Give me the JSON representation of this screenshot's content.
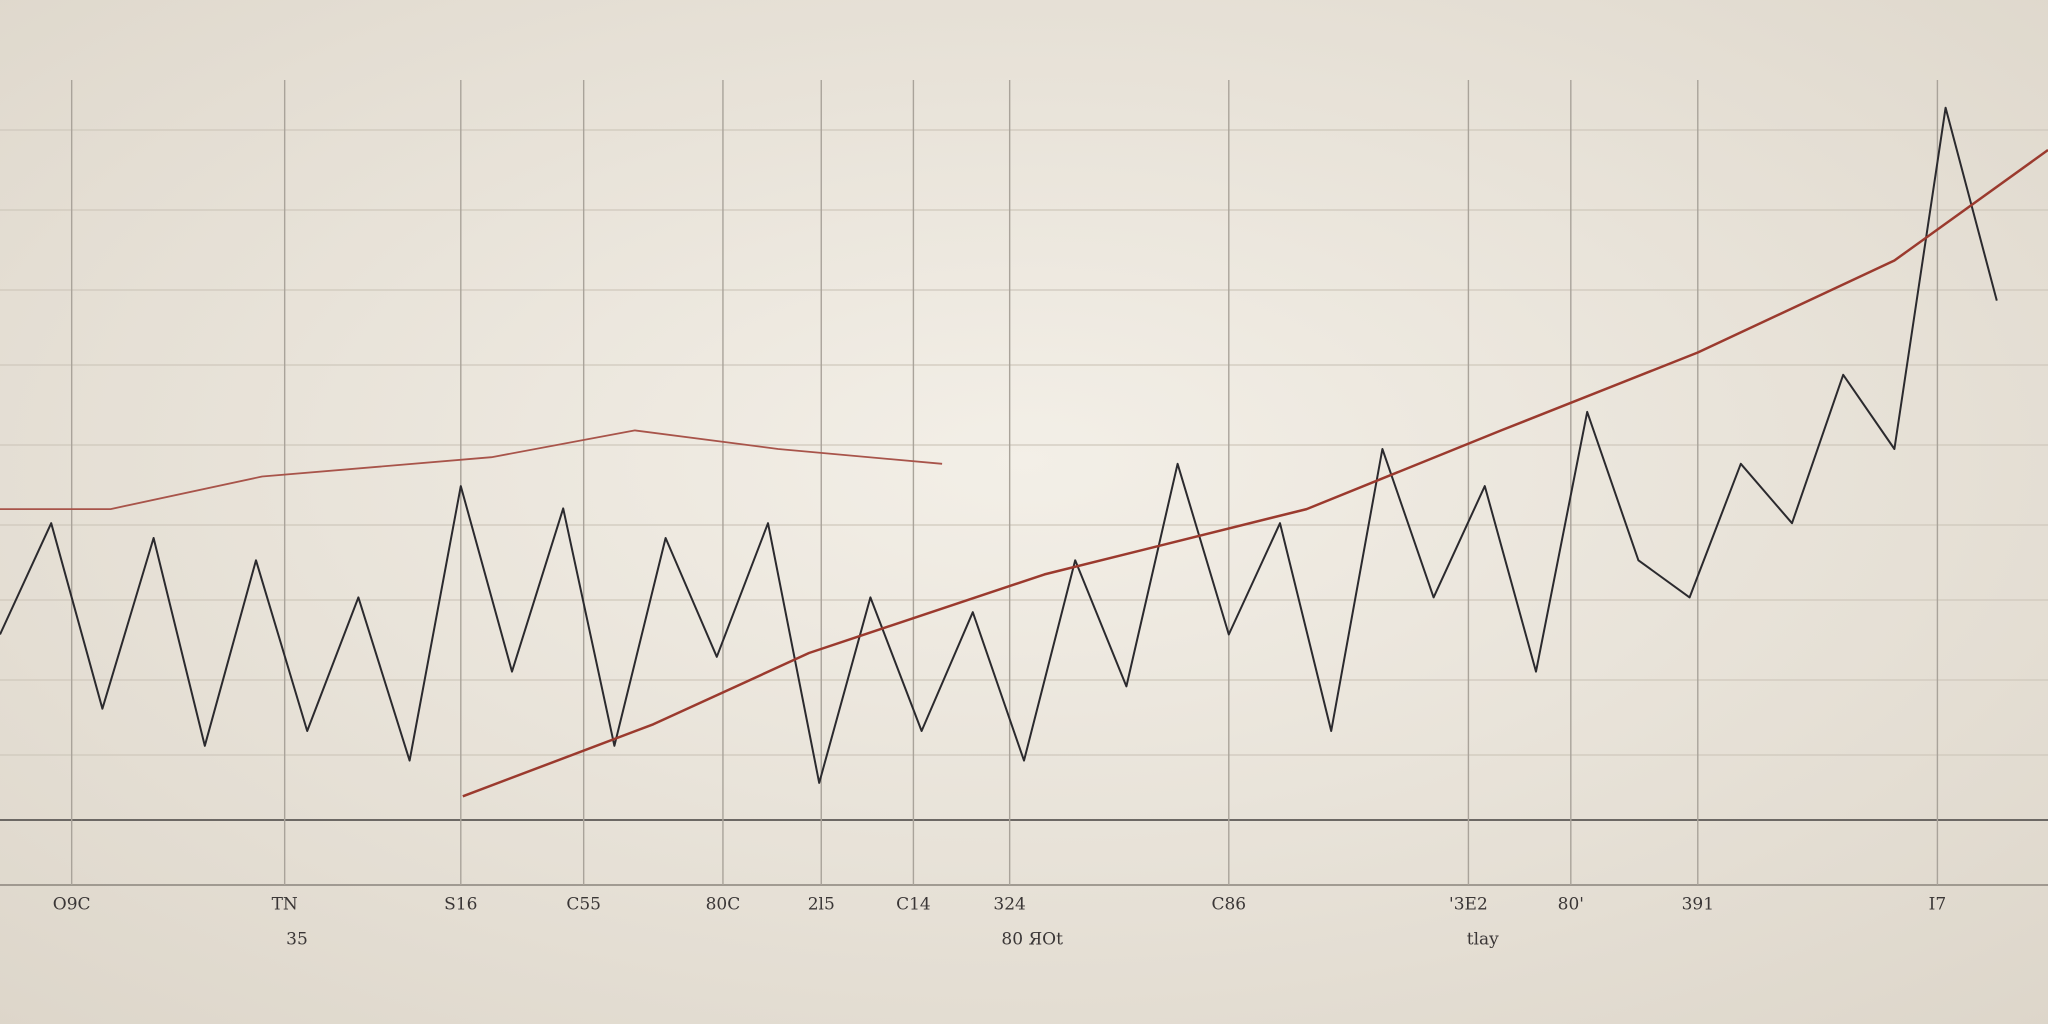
{
  "chart_data": {
    "type": "line",
    "xlim": [
      0,
      100
    ],
    "ylim": [
      0,
      100
    ],
    "grid": true,
    "xticks": [
      {
        "value": 3.5,
        "label": "O9C"
      },
      {
        "value": 13.9,
        "label": "TN"
      },
      {
        "value": 22.5,
        "label": "S16"
      },
      {
        "value": 28.5,
        "label": "C55"
      },
      {
        "value": 35.3,
        "label": "80C"
      },
      {
        "value": 40.1,
        "label": "2l5"
      },
      {
        "value": 44.6,
        "label": "C14"
      },
      {
        "value": 49.3,
        "label": "324"
      },
      {
        "value": 60.0,
        "label": "C86"
      },
      {
        "value": 71.7,
        "label": "'3E2"
      },
      {
        "value": 76.7,
        "label": "80'"
      },
      {
        "value": 82.9,
        "label": "391"
      },
      {
        "value": 94.6,
        "label": "I7"
      }
    ],
    "xticks_minor": [
      {
        "value": 14.5,
        "label": "35"
      },
      {
        "value": 50.4,
        "label": "80 ЯОt"
      },
      {
        "value": 72.4,
        "label": "tlay"
      }
    ],
    "series": [
      {
        "color": "#2b2a2e",
        "width": 2,
        "x": [
          0,
          2.5,
          5,
          7.5,
          10,
          12.5,
          15,
          17.5,
          20,
          22.5,
          25,
          27.5,
          30,
          32.5,
          35,
          37.5,
          40,
          42.5,
          45,
          47.5,
          50,
          52.5,
          55,
          57.5,
          60,
          62.5,
          65,
          67.5,
          70,
          72.5,
          75,
          77.5,
          80,
          82.5,
          85,
          87.5,
          90,
          92.5,
          95,
          97.5
        ],
        "values": [
          25,
          40,
          15,
          38,
          10,
          35,
          12,
          30,
          8,
          45,
          20,
          42,
          10,
          38,
          22,
          40,
          5,
          30,
          12,
          28,
          8,
          35,
          18,
          48,
          25,
          40,
          12,
          50,
          30,
          45,
          20,
          55,
          35,
          30,
          48,
          40,
          60,
          50,
          96,
          70
        ]
      },
      {
        "color": "#9b3a2e",
        "width": 2.5,
        "x": [
          22.6,
          31.9,
          39.5,
          51.0,
          63.8,
          73.3,
          82.9,
          92.5,
          100
        ],
        "values": [
          3.2,
          12.9,
          22.5,
          33.1,
          41.9,
          52.5,
          63.0,
          75.4,
          90.3
        ]
      },
      {
        "color": "#a8544a",
        "width": 1.8,
        "x": [
          0,
          5.4,
          12.8,
          24,
          31,
          38,
          46
        ],
        "values": [
          41.9,
          41.9,
          46.3,
          48.9,
          52.5,
          50,
          48
        ]
      }
    ]
  }
}
